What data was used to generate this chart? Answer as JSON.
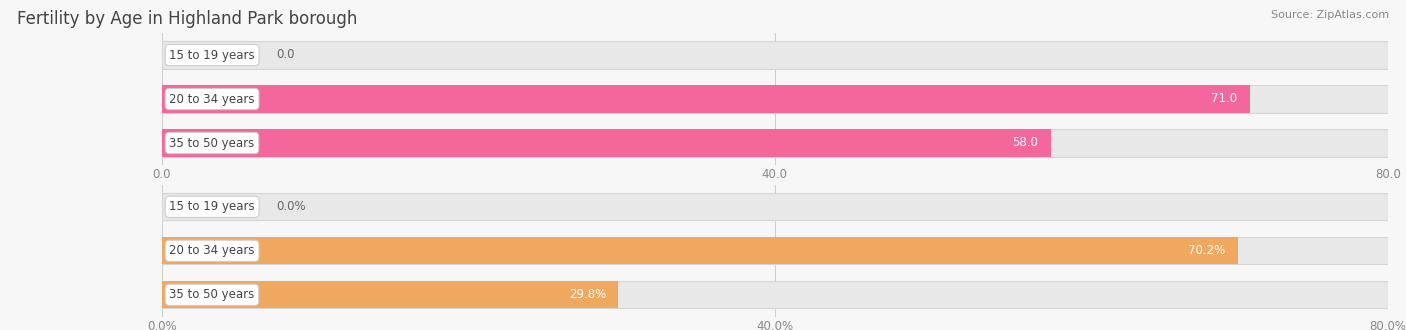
{
  "title": "Fertility by Age in Highland Park borough",
  "source": "Source: ZipAtlas.com",
  "top_chart": {
    "categories": [
      "15 to 19 years",
      "20 to 34 years",
      "35 to 50 years"
    ],
    "values": [
      0.0,
      71.0,
      58.0
    ],
    "value_labels": [
      "0.0",
      "71.0",
      "58.0"
    ],
    "xlim": [
      0,
      80
    ],
    "xticks": [
      0.0,
      40.0,
      80.0
    ],
    "xtick_labels": [
      "0.0",
      "40.0",
      "80.0"
    ],
    "bar_color": "#f4679d",
    "track_bg": "#e8e8e8",
    "track_border": "#d5d5d5"
  },
  "bottom_chart": {
    "categories": [
      "15 to 19 years",
      "20 to 34 years",
      "35 to 50 years"
    ],
    "values": [
      0.0,
      70.2,
      29.8
    ],
    "value_labels": [
      "0.0%",
      "70.2%",
      "29.8%"
    ],
    "xlim": [
      0,
      80
    ],
    "xticks": [
      0.0,
      40.0,
      80.0
    ],
    "xtick_labels": [
      "0.0%",
      "40.0%",
      "80.0%"
    ],
    "bar_color": "#f0a860",
    "track_bg": "#e8e8e8",
    "track_border": "#d5d5d5"
  },
  "fig_width": 14.06,
  "fig_height": 3.3,
  "dpi": 100,
  "background_color": "#f7f7f7",
  "title_fontsize": 12,
  "title_color": "#444444",
  "source_fontsize": 8,
  "source_color": "#888888",
  "label_fontsize": 8.5,
  "value_fontsize": 8.5,
  "bar_height": 0.62,
  "pill_label_color": "#444444",
  "pill_bg": "#ffffff",
  "pill_border": "#cccccc",
  "grid_color": "#cccccc",
  "tick_color": "#888888"
}
